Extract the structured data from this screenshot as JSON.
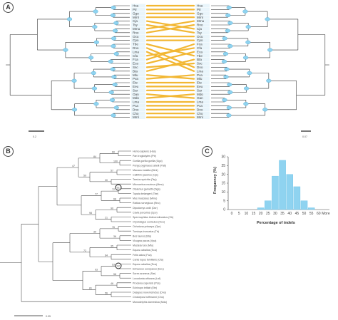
{
  "panels": {
    "a": {
      "badge": "A",
      "scale_left": "0.2",
      "scale_right": "0.07"
    },
    "b": {
      "badge": "B",
      "scale": "0.05"
    },
    "c": {
      "badge": "C"
    }
  },
  "tanglegram": {
    "left_labels": [
      "Hsa",
      "Ptr",
      "Ggo",
      "Mml",
      "Cja",
      "Tsy",
      "Mmu",
      "Rno",
      "Ocu",
      "Cpo",
      "Tbe",
      "Dno",
      "Lma",
      "Cfa",
      "Fca",
      "Eca",
      "Ssc",
      "Bta",
      "Mlu",
      "Pva",
      "Ete",
      "Eeu",
      "Sar",
      "Oan",
      "Mdo",
      "Lma",
      "Pca",
      "Dno",
      "Cho",
      "Mml"
    ],
    "right_labels": [
      "Hsa",
      "Ptr",
      "Ggo",
      "Mml",
      "Mmu",
      "Rno",
      "Cja",
      "Tsy",
      "Ocu",
      "Cpo",
      "Fca",
      "Cfa",
      "Eca",
      "Tbe",
      "Bta",
      "Ssc",
      "Dno",
      "Lma",
      "Pva",
      "Mlu",
      "Ete",
      "Eeu",
      "Sar",
      "Mdo",
      "Oan",
      "Lma",
      "Pca",
      "Dno",
      "Cho",
      "Mml"
    ]
  },
  "tree_b": {
    "taxa": [
      "Homo sapiens (Hsa)",
      "Pan troglodytes (Ptr)",
      "Gorilla gorilla gorilla (Ggo)",
      "Pongo pygmaeus abelii (Pab)",
      "Macaca mulatta (Mml)",
      "Callithrix jacchus (Cja)",
      "Tarsius syrichta (Tsy)",
      "Microcebus murinus (Mmu)",
      "Otolemur garnettii (Oga)",
      "Tupaia belangeri (Tbe)",
      "Mus musculus (Mmu)",
      "Rattus norvegicus (Rno)",
      "Dipodomys ordii (Dor)",
      "Cavia porcellus (Cpo)",
      "Spermophilus tridecemlineatus (Str)",
      "Oryctolagus cuniculus (Ocu)",
      "Ochotona princeps (Opr)",
      "Tursiops truncatus (Ttr)",
      "Bos taurus (Bta)",
      "Vicugna pacos (Vpa)",
      "Mustela furo (Mfu)",
      "Equus caballus (Eca)",
      "Felis catus (Fca)",
      "Canis lupus familiaris (Cfa)",
      "Equus caballus (Eca)",
      "Erinaceus europaeus (Eeu)",
      "Sorex araneus (Sar)",
      "Loxodonta africana (Laf)",
      "Procavia capensis (Pca)",
      "Echinops telfairi (Ete)",
      "Dasypus novemcinctus (Dno)",
      "Choloepus hoffmanni (Cho)",
      "Monodelphis domestica (Mdo)"
    ],
    "node_labels": [
      "60",
      "100",
      "57",
      "30",
      "72",
      "68",
      "90",
      "21",
      "76",
      "36",
      "35",
      "64",
      "53",
      "58",
      "46",
      "56",
      "84",
      "59",
      "77",
      "98",
      "30",
      "72",
      "93",
      "81",
      "47"
    ],
    "marker_labels": [
      "S1",
      "S2"
    ]
  },
  "chart_data": {
    "type": "bar",
    "categories": [
      "0",
      "5",
      "10",
      "15",
      "20",
      "25",
      "30",
      "35",
      "40",
      "45",
      "50",
      "55",
      "60",
      "More"
    ],
    "values": [
      0,
      0,
      0,
      0,
      1,
      5,
      19,
      28,
      20,
      13,
      5,
      1,
      0,
      0
    ],
    "xlabel": "Percentage of indels",
    "ylabel": "Frequency (%)",
    "ylim": [
      0,
      30
    ],
    "yticks": [
      "0",
      "5",
      "10",
      "15",
      "20",
      "25",
      "30"
    ],
    "grid": false,
    "bar_color": "#8fd3f0"
  }
}
